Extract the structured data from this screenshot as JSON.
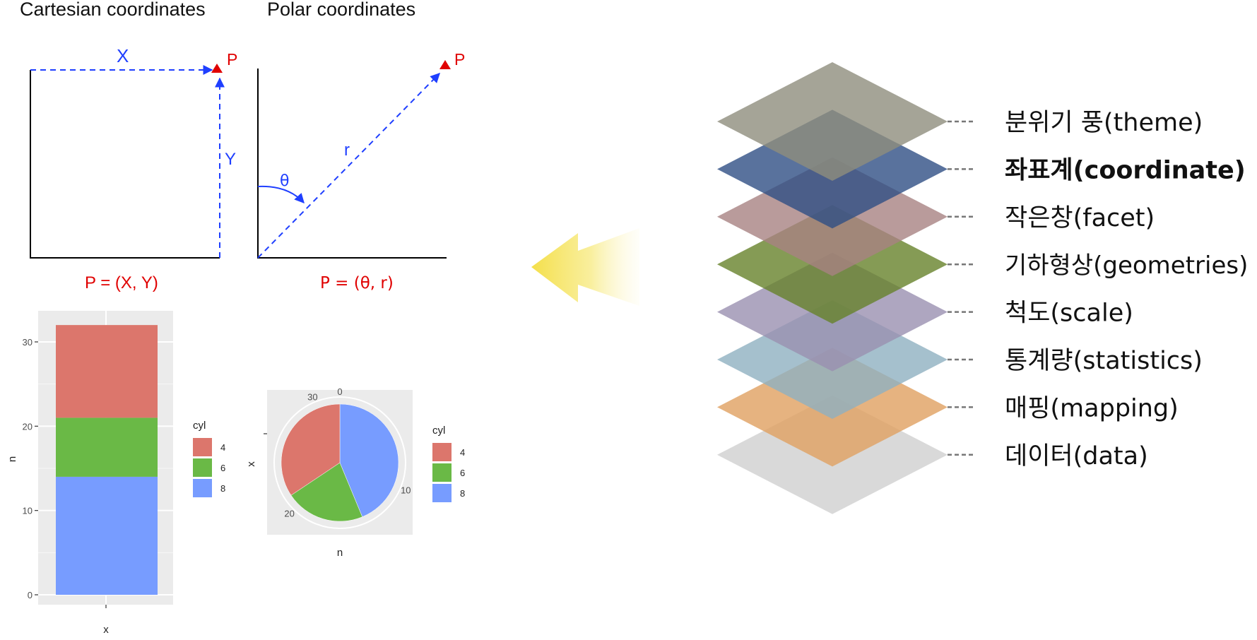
{
  "coords": {
    "cartesian_title": "Cartesian coordinates",
    "polar_title": "Polar coordinates",
    "x_label": "X",
    "y_label": "Y",
    "point_label": "P",
    "r_label": "r",
    "theta_label": "θ",
    "cartesian_formula": "P = (X, Y)",
    "polar_formula": "P = (θ, r)"
  },
  "layers": {
    "items": [
      {
        "label": "분위기 풍(theme)",
        "color": "#8f8d7d",
        "bold": false
      },
      {
        "label": "좌표계(coordinate)",
        "color": "#2f4f85",
        "bold": true
      },
      {
        "label": "작은창(facet)",
        "color": "#a88282",
        "bold": false
      },
      {
        "label": "기하형상(geometries)",
        "color": "#66822a",
        "bold": false
      },
      {
        "label": "척도(scale)",
        "color": "#9a90b0",
        "bold": false
      },
      {
        "label": "통계량(statistics)",
        "color": "#8fb0c0",
        "bold": false
      },
      {
        "label": "매핑(mapping)",
        "color": "#e0a060",
        "bold": false
      },
      {
        "label": "데이터(data)",
        "color": "#d0d0d0",
        "bold": false
      }
    ]
  },
  "arrow": {
    "color": "#f5e05a",
    "direction": "left"
  },
  "chart_data": [
    {
      "type": "bar",
      "stacked": true,
      "categories": [
        ""
      ],
      "series": [
        {
          "name": "4",
          "values": [
            11
          ],
          "color": "#dc766c"
        },
        {
          "name": "6",
          "values": [
            7
          ],
          "color": "#6ab946"
        },
        {
          "name": "8",
          "values": [
            14
          ],
          "color": "#779cff"
        }
      ],
      "xlabel": "x",
      "ylabel": "n",
      "ylim": [
        0,
        32
      ],
      "yticks": [
        "0",
        "10",
        "20",
        "30"
      ],
      "legend_title": "cyl",
      "legend_placement": "right",
      "grid": true
    },
    {
      "type": "pie",
      "coord": "polar",
      "series": [
        {
          "name": "8",
          "value": 14,
          "color": "#779cff"
        },
        {
          "name": "6",
          "value": 7,
          "color": "#6ab946"
        },
        {
          "name": "4",
          "value": 11,
          "color": "#dc766c"
        }
      ],
      "xlabel": "n",
      "ylabel": "x",
      "ticks": [
        "0",
        "10",
        "20",
        "30"
      ],
      "legend_title": "cyl",
      "legend_placement": "right"
    }
  ]
}
